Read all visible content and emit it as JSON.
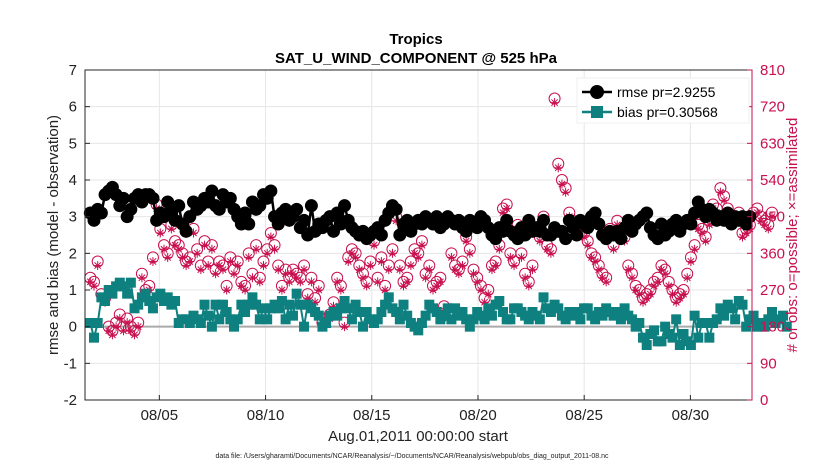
{
  "chart_data": {
    "type": "line",
    "title": "Tropics",
    "subtitle": "SAT_U_WIND_COMPONENT @ 525 hPa",
    "xlabel": "Aug.01,2011 00:00:00 start",
    "ylabel_left": "rmse and bias (model - observation)",
    "ylabel_right": "# of obs: o=possible; ×=assimilated",
    "footnote": "data file: /Users/gharamti/Documents/NCAR/Reanalysis/~/Documents/NCAR/Reanalysis/webpub/obs_diag_output_2011-08.nc",
    "x_unit": "days since Aug.01,2011 00:00",
    "xlim": [
      0.5,
      31.9
    ],
    "ylim_left": [
      -2,
      7
    ],
    "ylim_right": [
      0,
      810
    ],
    "grid": true,
    "legend_position": "top-right",
    "x_ticks": [
      {
        "value": 4,
        "label": "08/05"
      },
      {
        "value": 9,
        "label": "08/10"
      },
      {
        "value": 14,
        "label": "08/15"
      },
      {
        "value": 19,
        "label": "08/20"
      },
      {
        "value": 24,
        "label": "08/25"
      },
      {
        "value": 29,
        "label": "08/30"
      }
    ],
    "y_ticks_left": [
      "-2",
      "-1",
      "0",
      "1",
      "2",
      "3",
      "4",
      "5",
      "6",
      "7"
    ],
    "y_ticks_right": [
      "0",
      "90",
      "180",
      "270",
      "360",
      "450",
      "540",
      "630",
      "720",
      "810"
    ],
    "series": [
      {
        "name": "rmse",
        "legend_label": "rmse pr=2.9255",
        "color": "#000000",
        "marker": "circle",
        "axis": "left",
        "values": [
          3.1,
          2.9,
          3.2,
          3.1,
          3.6,
          3.7,
          3.8,
          3.6,
          3.3,
          3.5,
          3.0,
          3.2,
          3.5,
          3.6,
          3.4,
          3.6,
          3.6,
          3.5,
          2.9,
          3.1,
          3.0,
          3.4,
          3.1,
          2.9,
          3.3,
          2.8,
          2.6,
          3.0,
          3.4,
          3.2,
          3.3,
          3.5,
          3.4,
          3.7,
          3.3,
          3.2,
          3.6,
          3.4,
          3.5,
          3.2,
          3.0,
          2.8,
          3.1,
          2.8,
          3.4,
          3.2,
          3.3,
          3.6,
          3.5,
          3.7,
          3.0,
          2.8,
          3.1,
          3.2,
          2.9,
          3.0,
          3.2,
          2.7,
          2.9,
          2.5,
          3.3,
          2.6,
          2.8,
          2.7,
          2.9,
          3.0,
          2.6,
          3.1,
          2.8,
          3.3,
          2.9,
          2.7,
          2.6,
          2.5,
          2.6,
          2.4,
          2.5,
          2.6,
          2.7,
          2.5,
          2.9,
          3.1,
          3.3,
          3.2,
          2.5,
          2.8,
          2.9,
          2.6,
          2.8,
          2.9,
          2.8,
          3.0,
          2.9,
          2.8,
          3.0,
          2.7,
          2.8,
          3.0,
          2.9,
          2.8,
          2.9,
          2.7,
          2.6,
          2.9,
          2.8,
          2.7,
          3.0,
          2.9,
          2.7,
          2.5,
          2.4,
          2.7,
          2.6,
          2.9,
          2.6,
          2.5,
          2.4,
          2.7,
          2.5,
          2.9,
          2.6,
          2.7,
          2.6,
          2.9,
          2.5,
          2.5,
          2.7,
          2.6,
          2.6,
          2.4,
          2.9,
          2.7,
          2.5,
          2.9,
          2.8,
          2.7,
          3.0,
          3.1,
          2.8,
          2.5,
          2.4,
          2.6,
          2.5,
          2.6,
          2.4,
          2.7,
          2.9,
          2.6,
          2.8,
          2.9,
          3.0,
          3.1,
          2.7,
          2.5,
          2.4,
          2.8,
          2.5,
          2.6,
          2.8,
          2.9,
          2.6,
          2.8,
          2.9,
          2.8,
          3.1,
          3.4,
          3.2,
          3.0,
          3.2,
          3.1,
          2.9,
          3.0,
          2.9,
          3.1,
          2.8,
          3.0,
          2.9,
          3.0,
          2.8,
          3.0
        ]
      },
      {
        "name": "bias",
        "legend_label": "bias pr=0.30568",
        "color": "#0f8080",
        "marker": "square",
        "axis": "left",
        "values": [
          0.1,
          -0.3,
          0.1,
          0.8,
          0.7,
          1.0,
          0.9,
          1.1,
          1.2,
          1.1,
          0.9,
          1.2,
          0.5,
          0.6,
          0.8,
          0.9,
          0.7,
          0.5,
          0.8,
          0.9,
          0.7,
          0.8,
          0.6,
          0.7,
          0.1,
          0.2,
          0.2,
          0.1,
          0.3,
          0.2,
          0.1,
          0.6,
          0.3,
          0.0,
          0.6,
          0.2,
          0.6,
          0.4,
          0.2,
          0.0,
          0.2,
          0.6,
          0.4,
          0.6,
          0.8,
          0.6,
          0.2,
          0.5,
          0.2,
          0.5,
          0.6,
          0.5,
          0.7,
          0.2,
          0.6,
          0.3,
          0.9,
          0.6,
          0.0,
          0.6,
          0.5,
          0.4,
          0.3,
          0.0,
          0.1,
          0.3,
          0.4,
          0.3,
          0.5,
          0.7,
          0.5,
          0.2,
          0.6,
          0.4,
          0.0,
          0.4,
          0.2,
          0.1,
          0.2,
          0.4,
          0.6,
          0.8,
          0.5,
          0.4,
          0.2,
          0.6,
          0.3,
          0.1,
          0.0,
          -0.1,
          0.1,
          0.3,
          0.6,
          0.5,
          0.4,
          0.2,
          0.3,
          0.5,
          0.2,
          0.5,
          0.3,
          0.4,
          0.2,
          0.0,
          0.2,
          0.4,
          0.3,
          0.2,
          0.5,
          0.3,
          0.6,
          0.7,
          0.4,
          0.2,
          0.2,
          0.5,
          0.5,
          0.4,
          0.3,
          0.2,
          0.4,
          0.3,
          0.2,
          0.8,
          0.5,
          0.4,
          0.6,
          0.5,
          0.3,
          0.2,
          0.4,
          0.3,
          0.4,
          0.2,
          0.5,
          0.5,
          0.3,
          0.2,
          0.4,
          0.3,
          0.5,
          0.4,
          0.3,
          0.4,
          0.2,
          0.5,
          0.3,
          0.2,
          0.0,
          0.1,
          -0.3,
          -0.5,
          -0.2,
          -0.1,
          -0.4,
          -0.4,
          0.0,
          -0.2,
          -0.3,
          0.2,
          -0.5,
          -0.2,
          -0.4,
          -0.5,
          0.3,
          -0.3,
          0.1,
          0.1,
          -0.3,
          0.1,
          0.2,
          0.5,
          0.3,
          0.6,
          0.5,
          0.2,
          0.7,
          0.6,
          0.0,
          0.2,
          0.3,
          0.0,
          0.1,
          0.0,
          0.2,
          0.4,
          0.1,
          0.2,
          0.3,
          0.0
        ]
      },
      {
        "name": "obs possible",
        "color": "#c8104f",
        "marker": "open-circle",
        "axis": "right",
        "values": [
          300,
          290,
          340,
          260,
          250,
          180,
          170,
          190,
          210,
          180,
          200,
          180,
          170,
          190,
          310,
          270,
          280,
          350,
          480,
          420,
          380,
          360,
          430,
          390,
          380,
          360,
          340,
          350,
          420,
          370,
          330,
          390,
          340,
          380,
          320,
          340,
          330,
          280,
          350,
          320,
          340,
          290,
          280,
          360,
          310,
          380,
          300,
          340,
          370,
          410,
          380,
          330,
          280,
          320,
          300,
          320,
          310,
          300,
          330,
          260,
          300,
          250,
          280,
          190,
          200,
          210,
          240,
          300,
          280,
          190,
          350,
          370,
          360,
          330,
          310,
          290,
          340,
          390,
          300,
          350,
          280,
          330,
          370,
          450,
          330,
          290,
          300,
          340,
          370,
          360,
          390,
          310,
          330,
          280,
          290,
          300,
          230,
          210,
          360,
          330,
          320,
          340,
          400,
          370,
          320,
          300,
          280,
          250,
          270,
          330,
          340,
          380,
          470,
          480,
          360,
          340,
          430,
          360,
          310,
          290,
          330,
          420,
          400,
          450,
          380,
          370,
          740,
          580,
          540,
          520,
          460,
          440,
          410,
          430,
          410,
          390,
          360,
          350,
          330,
          310,
          300,
          420,
          380,
          440,
          410,
          400,
          330,
          310,
          280,
          270,
          250,
          260,
          270,
          290,
          300,
          330,
          320,
          290,
          270,
          250,
          260,
          270,
          310,
          350,
          380,
          430,
          420,
          400,
          440,
          480,
          470,
          520,
          500,
          470,
          440,
          450,
          460,
          410,
          420,
          430,
          460,
          470,
          450,
          440,
          430,
          460
        ]
      },
      {
        "name": "obs assimilated",
        "color": "#c8104f",
        "marker": "asterisk",
        "axis": "right",
        "values": [
          290,
          280,
          330,
          250,
          240,
          170,
          160,
          180,
          200,
          170,
          190,
          170,
          160,
          180,
          300,
          260,
          270,
          340,
          470,
          410,
          370,
          350,
          420,
          380,
          370,
          350,
          330,
          340,
          410,
          360,
          320,
          380,
          330,
          370,
          310,
          330,
          320,
          270,
          340,
          310,
          330,
          280,
          270,
          350,
          300,
          370,
          290,
          330,
          360,
          400,
          370,
          320,
          270,
          310,
          290,
          310,
          300,
          290,
          320,
          250,
          290,
          240,
          270,
          180,
          190,
          200,
          230,
          290,
          270,
          180,
          340,
          360,
          350,
          320,
          300,
          280,
          330,
          380,
          290,
          340,
          270,
          320,
          360,
          440,
          320,
          280,
          290,
          330,
          360,
          350,
          380,
          300,
          320,
          270,
          280,
          290,
          220,
          200,
          350,
          320,
          310,
          330,
          390,
          360,
          310,
          290,
          270,
          240,
          260,
          320,
          330,
          370,
          460,
          470,
          350,
          330,
          420,
          350,
          300,
          280,
          320,
          410,
          390,
          440,
          370,
          360,
          730,
          570,
          530,
          510,
          450,
          430,
          400,
          420,
          400,
          380,
          350,
          340,
          320,
          300,
          290,
          410,
          370,
          430,
          400,
          390,
          320,
          300,
          270,
          260,
          240,
          250,
          260,
          280,
          290,
          320,
          310,
          280,
          260,
          240,
          250,
          260,
          300,
          340,
          370,
          420,
          410,
          390,
          430,
          470,
          460,
          510,
          490,
          460,
          430,
          440,
          450,
          400,
          410,
          420,
          450,
          460,
          440,
          430,
          420,
          450
        ]
      }
    ]
  }
}
